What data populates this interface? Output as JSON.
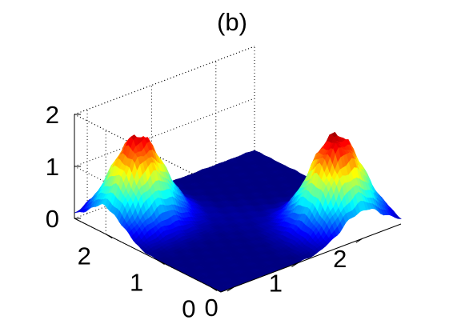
{
  "chart_data": {
    "type": "surface",
    "title": "(b)",
    "colormap": "jet",
    "xlabel": "",
    "ylabel": "",
    "zlabel": "",
    "x_range": [
      -0.2,
      2.6
    ],
    "y_range": [
      -0.2,
      2.6
    ],
    "zlim": [
      0,
      2
    ],
    "x_ticks": [
      "0",
      "1",
      "2"
    ],
    "y_ticks": [
      "0",
      "1",
      "2"
    ],
    "z_ticks": [
      "0",
      "1",
      "2"
    ],
    "grid": true,
    "base_level": 0.15,
    "peaks": [
      {
        "x": 2.0,
        "y": 0.3,
        "height": 1.7,
        "spread": 0.33
      },
      {
        "x": 0.3,
        "y": 2.0,
        "height": 1.65,
        "spread": 0.33
      }
    ],
    "colors": {
      "low": "#00008f",
      "high": "#800000",
      "background": "#ffffff",
      "axis": "#000000"
    }
  }
}
